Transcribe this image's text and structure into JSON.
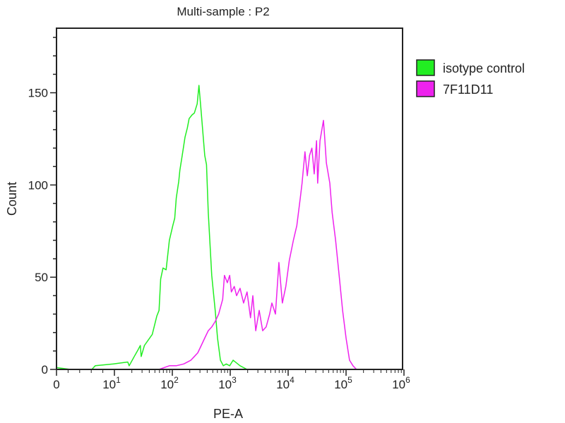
{
  "chart_data": {
    "type": "line",
    "title": "Multi-sample : P2",
    "xlabel": "PE-A",
    "ylabel": "Count",
    "x_scale": "biexponential (linear near 0, log above 10)",
    "xlim": [
      0,
      1000000
    ],
    "ylim": [
      0,
      185
    ],
    "x_ticks": [
      {
        "value": 0,
        "base": "0",
        "exp": ""
      },
      {
        "value": 10,
        "base": "10",
        "exp": "1"
      },
      {
        "value": 100,
        "base": "10",
        "exp": "2"
      },
      {
        "value": 1000,
        "base": "10",
        "exp": "3"
      },
      {
        "value": 10000,
        "base": "10",
        "exp": "4"
      },
      {
        "value": 100000,
        "base": "10",
        "exp": "5"
      },
      {
        "value": 1000000,
        "base": "10",
        "exp": "6"
      }
    ],
    "y_ticks": [
      "0",
      "50",
      "100",
      "150"
    ],
    "y_tick_values": [
      0,
      50,
      100,
      150
    ],
    "grid": false,
    "legend": "right",
    "series": [
      {
        "name": "isotype control",
        "color": "#22ee22",
        "x": [
          0,
          2.4,
          6.1,
          6.7,
          9.8,
          17,
          18,
          22,
          25,
          28,
          29,
          33,
          45,
          54,
          59,
          63,
          69,
          78,
          89,
          102,
          110,
          117,
          129,
          135,
          148,
          166,
          182,
          195,
          219,
          240,
          269,
          288,
          316,
          363,
          389,
          417,
          479,
          550,
          603,
          676,
          759,
          851,
          977,
          1122,
          1479,
          1950
        ],
        "y": [
          1,
          0,
          0,
          2,
          3,
          4,
          2,
          7,
          10,
          13,
          7,
          13,
          19,
          29,
          32,
          49,
          55,
          54,
          70,
          78,
          82,
          93,
          102,
          108,
          116,
          126,
          131,
          136,
          138,
          139,
          144,
          154,
          139,
          116,
          111,
          85,
          51,
          32,
          17,
          5,
          2,
          3,
          2,
          5,
          2,
          0
        ]
      },
      {
        "name": "7F11D11",
        "color": "#ee22ee",
        "x": [
          59,
          89,
          117,
          158,
          209,
          240,
          275,
          316,
          363,
          417,
          479,
          550,
          631,
          741,
          794,
          891,
          977,
          1047,
          1175,
          1288,
          1479,
          1698,
          1950,
          2239,
          2455,
          2754,
          3162,
          3631,
          4169,
          4786,
          5248,
          6026,
          6918,
          7943,
          9120,
          10471,
          12303,
          14125,
          16218,
          17378,
          19498,
          21380,
          23442,
          25704,
          28184,
          30903,
          32359,
          35481,
          40738,
          42658,
          45709,
          52481,
          57544,
          66069,
          75858,
          87096,
          100000,
          114815,
          131826,
          151356
        ],
        "y": [
          0,
          2,
          2,
          3,
          5,
          7,
          9,
          13,
          17,
          21,
          23,
          26,
          30,
          38,
          51,
          47,
          51,
          42,
          45,
          40,
          44,
          36,
          42,
          28,
          40,
          21,
          32,
          21,
          23,
          30,
          36,
          30,
          58,
          36,
          45,
          59,
          70,
          78,
          93,
          101,
          118,
          105,
          116,
          120,
          106,
          124,
          101,
          124,
          135,
          126,
          112,
          101,
          85,
          70,
          51,
          32,
          17,
          5,
          2,
          0
        ]
      }
    ]
  }
}
